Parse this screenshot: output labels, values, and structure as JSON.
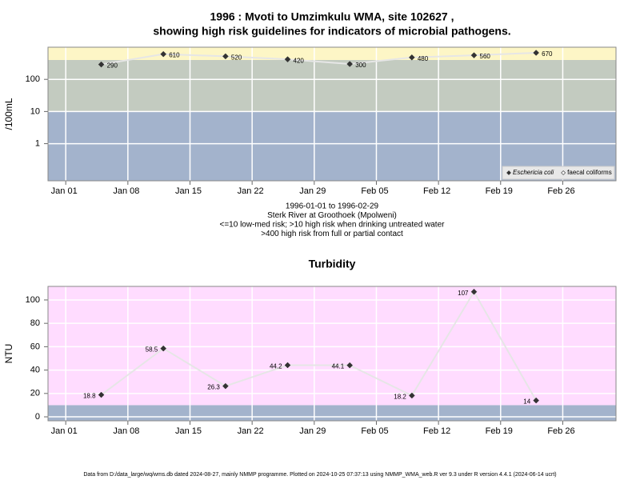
{
  "chart_data": [
    {
      "type": "line",
      "log_y": true,
      "grid": true,
      "legend": "bottom right",
      "title": [
        "1996 : Mvoti to Umzimkulu WMA, site 102627 ,",
        "showing high risk guidelines for indicators of microbial pathogens."
      ],
      "ylabel": "/100mL",
      "annotations": [
        "1996-01-01 to 1996-02-29",
        "Sterk River at Groothoek (Mpolweni)",
        "<=10 low-med risk; >10 high risk when drinking untreated water",
        ">400 high risk from full or partial contact"
      ],
      "x": [
        "Jan 05",
        "Jan 12",
        "Jan 19",
        "Jan 26",
        "Feb 02",
        "Feb 09",
        "Feb 16",
        "Feb 23"
      ],
      "xlim": [
        "Dec 30",
        "Mar 03"
      ],
      "xticks": [
        "Jan 01",
        "Jan 08",
        "Jan 15",
        "Jan 22",
        "Jan 29",
        "Feb 05",
        "Feb 12",
        "Feb 19",
        "Feb 26"
      ],
      "ylim": [
        0.07,
        1000
      ],
      "yticks": [
        1,
        10,
        100
      ],
      "bands": [
        {
          "to": 10,
          "color": "#a3b3cc"
        },
        {
          "from": 10,
          "to": 400,
          "color": "#c3cbc0"
        },
        {
          "from": 400,
          "color": "#fdf6c6"
        }
      ],
      "line_color": "#e6e6e6",
      "series": [
        {
          "name": "Eschericia coli",
          "color": "#333333",
          "values": [
            290,
            610,
            520,
            420,
            300,
            480,
            560,
            670
          ]
        },
        {
          "name": "faecal coliforms",
          "color": "#ffffff",
          "values": [
            null,
            null,
            null,
            null,
            null,
            null,
            null,
            null
          ]
        }
      ]
    },
    {
      "type": "line",
      "log_y": false,
      "grid": true,
      "title": [
        "Turbidity"
      ],
      "ylabel": "NTU",
      "x": [
        "Jan 05",
        "Jan 12",
        "Jan 19",
        "Jan 26",
        "Feb 02",
        "Feb 09",
        "Feb 16",
        "Feb 23"
      ],
      "xlim": [
        "Dec 30",
        "Mar 03"
      ],
      "xticks": [
        "Jan 01",
        "Jan 08",
        "Jan 15",
        "Jan 22",
        "Jan 29",
        "Feb 05",
        "Feb 12",
        "Feb 19",
        "Feb 26"
      ],
      "ylim": [
        -3.4,
        111.6
      ],
      "yticks": [
        0,
        20,
        40,
        60,
        80,
        100
      ],
      "bands": [
        {
          "to": 10,
          "color": "#a3b3cc"
        },
        {
          "from": 10,
          "color": "#ffdcff"
        }
      ],
      "line_color": "#e6e6e6",
      "color": "#333333",
      "values": [
        18.8,
        58.5,
        26.3,
        44.2,
        44.1,
        18.2,
        107,
        14
      ]
    }
  ],
  "footer": "Data from D:/data_large/wq/wms.db dated 2024-08-27, mainly NMMP programme. Plotted on 2024-10-25 07:37:13 using NMMP_WMA_web.R ver 9.3 under R version 4.4.1 (2024-06-14 ucrt)"
}
